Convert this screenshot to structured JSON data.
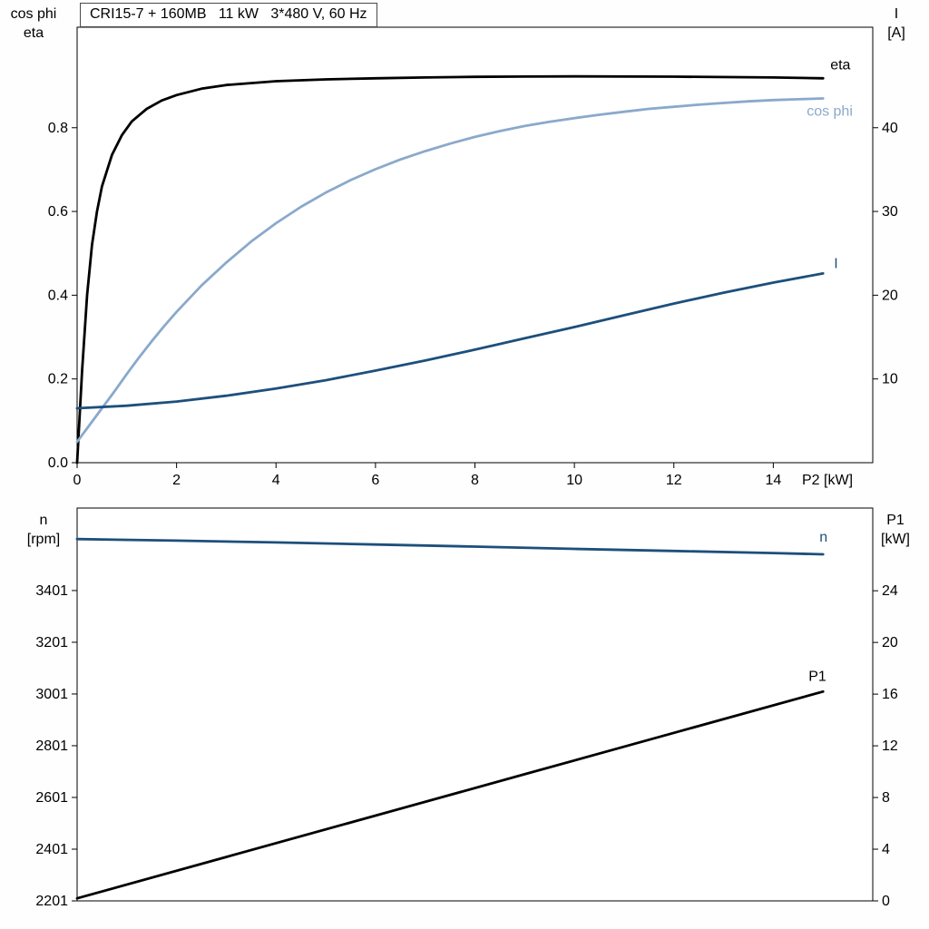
{
  "chart_data": [
    {
      "type": "line",
      "title": "CRI15-7 + 160MB   11 kW   3*480 V, 60 Hz",
      "xlabel": "P2 [kW]",
      "x_range": [
        0,
        16
      ],
      "x_ticks": [
        0,
        2,
        4,
        6,
        8,
        10,
        12,
        14
      ],
      "x_tick_labels": [
        "0",
        "2",
        "4",
        "6",
        "8",
        "10",
        "12",
        "14"
      ],
      "grid": false,
      "legend": "curve-end-labels",
      "axes": {
        "left": {
          "label_lines": [
            "cos phi",
            "eta"
          ],
          "range": [
            0,
            1.04
          ],
          "ticks": [
            0.0,
            0.2,
            0.4,
            0.6,
            0.8
          ],
          "tick_labels": [
            "0.0",
            "0.2",
            "0.4",
            "0.6",
            "0.8"
          ]
        },
        "right": {
          "label_lines": [
            "I",
            "[A]"
          ],
          "range": [
            0,
            52
          ],
          "ticks": [
            10,
            20,
            30,
            40
          ],
          "tick_labels": [
            "10",
            "20",
            "30",
            "40"
          ]
        }
      },
      "series": [
        {
          "name": "eta",
          "axis": "left",
          "color": "#000000",
          "label_offset": [
            8,
            -10
          ],
          "points": [
            [
              0,
              0
            ],
            [
              0.1,
              0.22
            ],
            [
              0.2,
              0.4
            ],
            [
              0.3,
              0.52
            ],
            [
              0.4,
              0.6
            ],
            [
              0.5,
              0.66
            ],
            [
              0.7,
              0.735
            ],
            [
              0.9,
              0.782
            ],
            [
              1.1,
              0.815
            ],
            [
              1.4,
              0.845
            ],
            [
              1.7,
              0.865
            ],
            [
              2,
              0.878
            ],
            [
              2.5,
              0.893
            ],
            [
              3,
              0.902
            ],
            [
              4,
              0.911
            ],
            [
              5,
              0.9155
            ],
            [
              6,
              0.918
            ],
            [
              7,
              0.92
            ],
            [
              8,
              0.9215
            ],
            [
              9,
              0.9222
            ],
            [
              10,
              0.9225
            ],
            [
              12,
              0.922
            ],
            [
              14,
              0.92
            ],
            [
              15,
              0.918
            ]
          ]
        },
        {
          "name": "cos phi",
          "axis": "left",
          "color": "#8aa9cb",
          "label_offset": [
            -18,
            19
          ],
          "points": [
            [
              0,
              0.05
            ],
            [
              0.25,
              0.09
            ],
            [
              0.5,
              0.13
            ],
            [
              0.75,
              0.17
            ],
            [
              1,
              0.212
            ],
            [
              1.25,
              0.252
            ],
            [
              1.5,
              0.29
            ],
            [
              1.75,
              0.326
            ],
            [
              2,
              0.36
            ],
            [
              2.5,
              0.423
            ],
            [
              3,
              0.478
            ],
            [
              3.5,
              0.528
            ],
            [
              4,
              0.572
            ],
            [
              4.5,
              0.611
            ],
            [
              5,
              0.645
            ],
            [
              5.5,
              0.675
            ],
            [
              6,
              0.701
            ],
            [
              6.5,
              0.724
            ],
            [
              7,
              0.744
            ],
            [
              7.5,
              0.762
            ],
            [
              8,
              0.778
            ],
            [
              8.5,
              0.792
            ],
            [
              9,
              0.804
            ],
            [
              9.5,
              0.814
            ],
            [
              10,
              0.823
            ],
            [
              10.5,
              0.831
            ],
            [
              11,
              0.838
            ],
            [
              11.5,
              0.845
            ],
            [
              12,
              0.85
            ],
            [
              12.5,
              0.855
            ],
            [
              13,
              0.859
            ],
            [
              13.5,
              0.863
            ],
            [
              14,
              0.866
            ],
            [
              14.5,
              0.868
            ],
            [
              15,
              0.87
            ]
          ]
        },
        {
          "name": "I",
          "axis": "right",
          "color": "#1d4f7c",
          "label_offset": [
            12,
            -6
          ],
          "points": [
            [
              0,
              6.5
            ],
            [
              1,
              6.8
            ],
            [
              2,
              7.3
            ],
            [
              3,
              8.0
            ],
            [
              4,
              8.85
            ],
            [
              5,
              9.85
            ],
            [
              6,
              11.0
            ],
            [
              7,
              12.2
            ],
            [
              8,
              13.5
            ],
            [
              9,
              14.85
            ],
            [
              10,
              16.2
            ],
            [
              11,
              17.6
            ],
            [
              12,
              19.0
            ],
            [
              13,
              20.3
            ],
            [
              14,
              21.5
            ],
            [
              15,
              22.6
            ]
          ]
        }
      ]
    },
    {
      "type": "line",
      "title": "",
      "xlabel": "",
      "x_range": [
        0,
        16
      ],
      "x_ticks": [],
      "x_tick_labels": [],
      "grid": false,
      "legend": "curve-end-labels",
      "axes": {
        "left": {
          "label_lines": [
            "n",
            "[rpm]"
          ],
          "range": [
            2201,
            3720
          ],
          "ticks": [
            2201,
            2401,
            2601,
            2801,
            3001,
            3201,
            3401
          ],
          "tick_labels": [
            "2201",
            "2401",
            "2601",
            "2801",
            "3001",
            "3201",
            "3401"
          ]
        },
        "right": {
          "label_lines": [
            "P1",
            "[kW]"
          ],
          "range": [
            0,
            30.4
          ],
          "ticks": [
            0,
            4,
            8,
            12,
            16,
            20,
            24
          ],
          "tick_labels": [
            "0",
            "4",
            "8",
            "12",
            "16",
            "20",
            "24"
          ]
        }
      },
      "series": [
        {
          "name": "n",
          "axis": "left",
          "color": "#1d4f7c",
          "label_offset": [
            -4,
            -14
          ],
          "points": [
            [
              0,
              3600
            ],
            [
              2,
              3594
            ],
            [
              4,
              3587
            ],
            [
              6,
              3579
            ],
            [
              8,
              3571
            ],
            [
              10,
              3562
            ],
            [
              12,
              3554
            ],
            [
              14,
              3546
            ],
            [
              15,
              3541
            ]
          ]
        },
        {
          "name": "P1",
          "axis": "right",
          "color": "#000000",
          "label_offset": [
            -16,
            -12
          ],
          "points": [
            [
              0,
              0.2
            ],
            [
              3,
              3.4
            ],
            [
              6,
              6.6
            ],
            [
              9,
              9.8
            ],
            [
              12,
              13.0
            ],
            [
              15,
              16.2
            ]
          ]
        }
      ]
    }
  ]
}
